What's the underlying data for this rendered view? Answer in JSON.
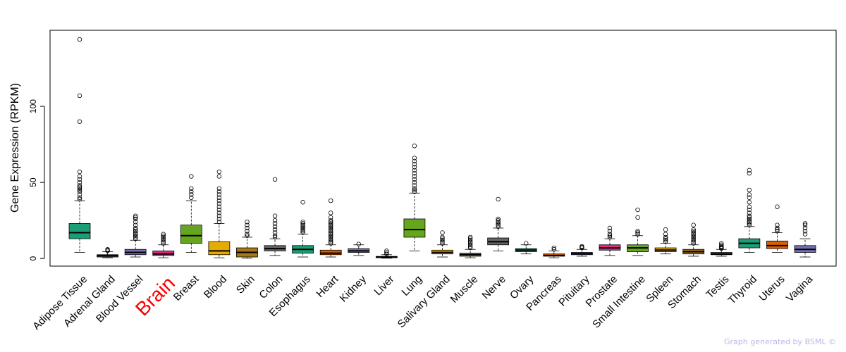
{
  "chart_data": {
    "type": "boxplot",
    "ylabel": "Gene Expression (RPKM)",
    "ylim": [
      -5,
      150
    ],
    "yticks": [
      0,
      50,
      100
    ],
    "highlight_category": "Brain",
    "highlight_color": "#ff0000",
    "categories": [
      {
        "name": "Adipose Tissue",
        "color": "#1b9e77",
        "whisker_low": 4,
        "q1": 13,
        "median": 17,
        "q3": 23,
        "whisker_high": 38,
        "outliers": [
          39,
          40,
          42,
          44,
          45,
          46,
          47,
          48,
          50,
          52,
          54,
          57,
          90,
          107,
          144
        ]
      },
      {
        "name": "Adrenal Gland",
        "color": "#666666",
        "whisker_low": 0.5,
        "q1": 1,
        "median": 1.8,
        "q3": 2.5,
        "whisker_high": 4.5,
        "outliers": [
          5,
          5.5,
          6
        ]
      },
      {
        "name": "Blood Vessel",
        "color": "#7570b3",
        "whisker_low": 1,
        "q1": 2.5,
        "median": 4,
        "q3": 6,
        "whisker_high": 12,
        "outliers": [
          13,
          14,
          15,
          16,
          17,
          18,
          19,
          20,
          22,
          24,
          26,
          27,
          28
        ]
      },
      {
        "name": "Brain",
        "color": "#e7298a",
        "whisker_low": 0.5,
        "q1": 2,
        "median": 3,
        "q3": 5,
        "whisker_high": 9,
        "outliers": [
          10,
          11,
          12,
          13,
          14,
          15,
          16
        ]
      },
      {
        "name": "Breast",
        "color": "#66a61e",
        "whisker_low": 4,
        "q1": 10,
        "median": 15,
        "q3": 22,
        "whisker_high": 38,
        "outliers": [
          40,
          42,
          44,
          46,
          54
        ]
      },
      {
        "name": "Blood",
        "color": "#e6ab02",
        "whisker_low": 0.5,
        "q1": 2.5,
        "median": 5,
        "q3": 11,
        "whisker_high": 23,
        "outliers": [
          24,
          26,
          28,
          30,
          32,
          34,
          36,
          38,
          40,
          42,
          44,
          46,
          54,
          57
        ]
      },
      {
        "name": "Skin",
        "color": "#a6761d",
        "whisker_low": 0.2,
        "q1": 1,
        "median": 4,
        "q3": 7,
        "whisker_high": 14,
        "outliers": [
          15,
          16,
          18,
          20,
          22,
          24
        ]
      },
      {
        "name": "Colon",
        "color": "#666666",
        "whisker_low": 2,
        "q1": 5,
        "median": 6.5,
        "q3": 8.5,
        "whisker_high": 13,
        "outliers": [
          14,
          15,
          17,
          19,
          21,
          23,
          25,
          28,
          52
        ]
      },
      {
        "name": "Esophagus",
        "color": "#1b9e77",
        "whisker_low": 1,
        "q1": 3.5,
        "median": 6,
        "q3": 8.5,
        "whisker_high": 16,
        "outliers": [
          17,
          18,
          19,
          20,
          21,
          22,
          23,
          24,
          37
        ]
      },
      {
        "name": "Heart",
        "color": "#d95f02",
        "whisker_low": 1,
        "q1": 2.5,
        "median": 3.5,
        "q3": 5.5,
        "whisker_high": 9,
        "outliers": [
          10,
          11,
          12,
          13,
          14,
          15,
          16,
          17,
          18,
          19,
          20,
          21,
          22,
          23,
          24,
          25,
          27,
          30,
          38
        ]
      },
      {
        "name": "Kidney",
        "color": "#7570b3",
        "whisker_low": 2,
        "q1": 4,
        "median": 5,
        "q3": 6.5,
        "whisker_high": 9,
        "outliers": [
          9.5
        ]
      },
      {
        "name": "Liver",
        "color": "#e7298a",
        "whisker_low": 0.2,
        "q1": 0.5,
        "median": 0.9,
        "q3": 1.4,
        "whisker_high": 2.5,
        "outliers": [
          3,
          4,
          5
        ]
      },
      {
        "name": "Lung",
        "color": "#66a61e",
        "whisker_low": 5,
        "q1": 14,
        "median": 19,
        "q3": 26,
        "whisker_high": 43,
        "outliers": [
          44,
          45,
          46,
          48,
          50,
          52,
          54,
          56,
          58,
          60,
          62,
          64,
          66,
          74
        ]
      },
      {
        "name": "Salivary Gland",
        "color": "#e6ab02",
        "whisker_low": 1,
        "q1": 3,
        "median": 4,
        "q3": 5.5,
        "whisker_high": 9,
        "outliers": [
          10,
          11,
          12,
          13,
          14,
          17
        ]
      },
      {
        "name": "Muscle",
        "color": "#a6761d",
        "whisker_low": 0.5,
        "q1": 1.5,
        "median": 2.5,
        "q3": 3.5,
        "whisker_high": 6,
        "outliers": [
          7,
          8,
          9,
          10,
          11,
          12,
          13,
          14
        ]
      },
      {
        "name": "Nerve",
        "color": "#666666",
        "whisker_low": 5,
        "q1": 9,
        "median": 11,
        "q3": 13.5,
        "whisker_high": 20,
        "outliers": [
          21,
          22,
          23,
          24,
          25,
          26,
          39
        ]
      },
      {
        "name": "Ovary",
        "color": "#1b9e77",
        "whisker_low": 3,
        "q1": 4.5,
        "median": 5.5,
        "q3": 6.5,
        "whisker_high": 9,
        "outliers": [
          10
        ]
      },
      {
        "name": "Pancreas",
        "color": "#d95f02",
        "whisker_low": 0.5,
        "q1": 1.5,
        "median": 2,
        "q3": 3,
        "whisker_high": 5,
        "outliers": [
          6,
          7
        ]
      },
      {
        "name": "Pituitary",
        "color": "#7570b3",
        "whisker_low": 1.5,
        "q1": 2.5,
        "median": 3.2,
        "q3": 4,
        "whisker_high": 6,
        "outliers": [
          7,
          7.5,
          8
        ]
      },
      {
        "name": "Prostate",
        "color": "#e7298a",
        "whisker_low": 2,
        "q1": 5.5,
        "median": 7,
        "q3": 9,
        "whisker_high": 13,
        "outliers": [
          14,
          15,
          16,
          18,
          20
        ]
      },
      {
        "name": "Small Intestine",
        "color": "#66a61e",
        "whisker_low": 2,
        "q1": 4.5,
        "median": 7,
        "q3": 9,
        "whisker_high": 15,
        "outliers": [
          16,
          17,
          18,
          27,
          32
        ]
      },
      {
        "name": "Spleen",
        "color": "#e6ab02",
        "whisker_low": 3,
        "q1": 4.5,
        "median": 5.5,
        "q3": 7,
        "whisker_high": 10,
        "outliers": [
          11,
          12,
          13,
          14,
          16,
          19
        ]
      },
      {
        "name": "Stomach",
        "color": "#a6761d",
        "whisker_low": 1.5,
        "q1": 3,
        "median": 4.5,
        "q3": 6,
        "whisker_high": 9,
        "outliers": [
          10,
          11,
          12,
          13,
          14,
          15,
          16,
          17,
          18,
          19,
          22
        ]
      },
      {
        "name": "Testis",
        "color": "#666666",
        "whisker_low": 1.5,
        "q1": 2.5,
        "median": 3,
        "q3": 4,
        "whisker_high": 6,
        "outliers": [
          6.5,
          7,
          7.5,
          8,
          9,
          10
        ]
      },
      {
        "name": "Thyroid",
        "color": "#1b9e77",
        "whisker_low": 4,
        "q1": 7,
        "median": 10,
        "q3": 13,
        "whisker_high": 21,
        "outliers": [
          22,
          23,
          24,
          25,
          26,
          27,
          28,
          30,
          32,
          34,
          37,
          40,
          42,
          45,
          56,
          58
        ]
      },
      {
        "name": "Uterus",
        "color": "#d95f02",
        "whisker_low": 4,
        "q1": 6.5,
        "median": 8.5,
        "q3": 11.5,
        "whisker_high": 17,
        "outliers": [
          18,
          19,
          20,
          22,
          34
        ]
      },
      {
        "name": "Vagina",
        "color": "#7570b3",
        "whisker_low": 1,
        "q1": 4,
        "median": 6,
        "q3": 8.5,
        "whisker_high": 13,
        "outliers": [
          16,
          18,
          20,
          22,
          23
        ]
      }
    ]
  },
  "footer": {
    "credit": "Graph generated by BSML ©"
  }
}
